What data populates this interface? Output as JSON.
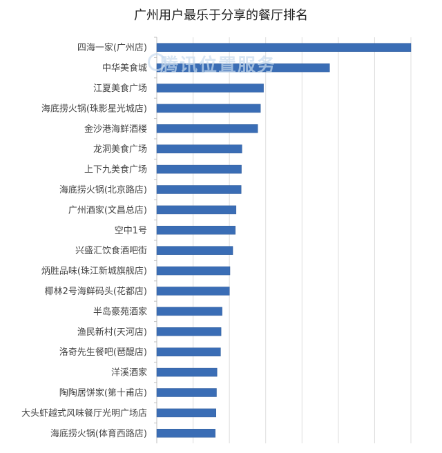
{
  "title": "广州用户最乐于分享的餐厅排名",
  "watermark": "腾讯位置服务",
  "colors": {
    "bar": "#3a6db5",
    "bar_edge": "#2e5a99",
    "grid": "#dcdcdc",
    "axis": "#bfbfbf"
  },
  "chart_data": {
    "type": "bar",
    "orientation": "horizontal",
    "title": "广州用户最乐于分享的餐厅排名",
    "xlabel": "",
    "ylabel": "",
    "grid": true,
    "xlim": [
      0,
      100
    ],
    "categories": [
      "四海一家(广州店)",
      "中华美食城",
      "江夏美食广场",
      "海底捞火锅(珠影星光城店)",
      "金沙港海鲜酒楼",
      "龙洞美食广场",
      "上下九美食广场",
      "海底捞火锅(北京路店)",
      "广州酒家(文昌总店)",
      "空中1号",
      "兴盛汇饮食酒吧街",
      "炳胜品味(珠江新城旗舰店)",
      "椰林2号海鲜码头(花都店)",
      "半岛豪苑酒家",
      "渔民新村(天河店)",
      "洛奇先生餐吧(琶醍店)",
      "洋溪酒家",
      "陶陶居饼家(第十甫店)",
      "大头虾越式风味餐厅光明广场店",
      "海底捞火锅(体育西路店)"
    ],
    "values": [
      100,
      68,
      42,
      40.8,
      39.7,
      33.5,
      33.3,
      33.2,
      31.2,
      30.9,
      29.9,
      28.8,
      28.6,
      25.7,
      25.3,
      25.1,
      23.7,
      23.5,
      23.3,
      23.0
    ]
  }
}
